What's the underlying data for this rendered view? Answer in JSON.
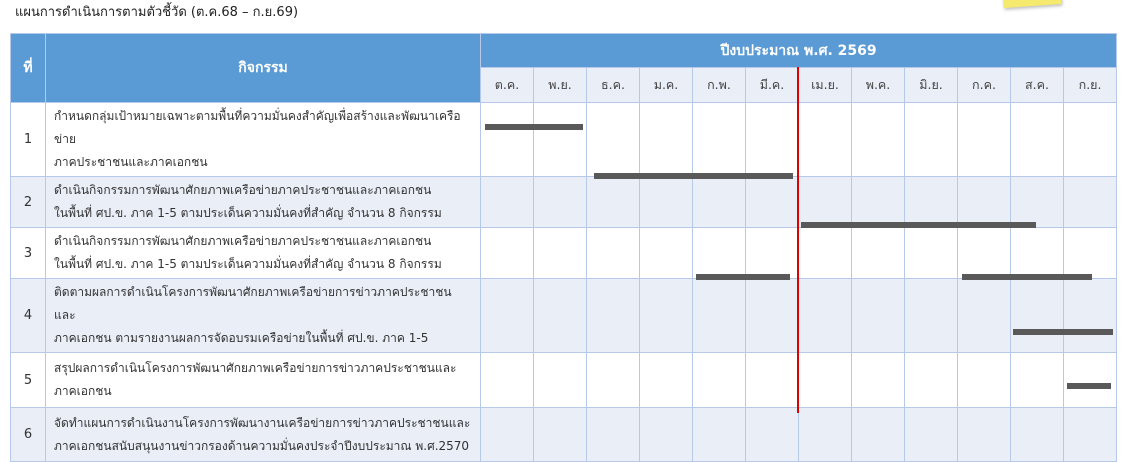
{
  "title": "แผนการดำเนินการตามตัวชี้วัด  (ต.ค.68 – ก.ย.69)",
  "header": {
    "no": "ที่",
    "activity": "กิจกรรม",
    "year": "ปีงบประมาณ พ.ศ. 2569"
  },
  "chart_data": {
    "type": "gantt",
    "categories": [
      "ต.ค.",
      "พ.ย.",
      "ธ.ค.",
      "ม.ค.",
      "ก.พ.",
      "มี.ค.",
      "เม.ย.",
      "พ.ค.",
      "มิ.ย.",
      "ก.ค.",
      "ส.ค.",
      "ก.ย."
    ],
    "current_marker_month_index": 6,
    "current_marker_color": "#e00000",
    "bar_color": "#595959",
    "rows": [
      {
        "no": "1",
        "lines": [
          "กำหนดกลุ่มเป้าหมายเฉพาะตามพื้นที่ความมั่นคงสำคัญเพื่อสร้างและพัฒนาเครือข่าย",
          "ภาคประชาชนและภาคเอกชน"
        ],
        "bars": [
          [
            0.1,
            1.95
          ]
        ]
      },
      {
        "no": "2",
        "lines": [
          "ดำเนินกิจกรรมการพัฒนาศักยภาพเครือข่ายภาคประชาชนและภาคเอกชน",
          "ในพื้นที่ ศป.ข. ภาค 1-5 ตามประเด็นความมั่นคงที่สำคัญ จำนวน 8 กิจกรรม"
        ],
        "bars": [
          [
            2.15,
            5.9
          ]
        ]
      },
      {
        "no": "3",
        "lines": [
          "ดำเนินกิจกรรมการพัฒนาศักยภาพเครือข่ายภาคประชาชนและภาคเอกชน",
          "ในพื้นที่ ศป.ข. ภาค 1-5 ตามประเด็นความมั่นคงที่สำคัญ จำนวน 8 กิจกรรม"
        ],
        "bars": [
          [
            6.05,
            10.5
          ]
        ]
      },
      {
        "no": "4",
        "lines": [
          "ติดตามผลการดำเนินโครงการพัฒนาศักยภาพเครือข่ายการข่าวภาคประชาชนและ",
          "ภาคเอกชน ตามรายงานผลการจัดอบรมเครือข่ายในพื้นที่ ศป.ข. ภาค 1-5"
        ],
        "bars": [
          [
            4.08,
            5.85
          ],
          [
            9.1,
            11.55
          ]
        ]
      },
      {
        "no": "5",
        "lines": [
          "สรุปผลการดำเนินโครงการพัฒนาศักยภาพเครือข่ายการข่าวภาคประชาชนและ",
          "ภาคเอกชน"
        ],
        "bars": [
          [
            10.05,
            11.95
          ]
        ]
      },
      {
        "no": "6",
        "lines": [
          "จัดทำแผนการดำเนินงานโครงการพัฒนางานเครือข่ายการข่าวภาคประชาชนและ",
          "ภาคเอกชนสนับสนุนงานข่าวกรองด้านความมั่นคงประจำปีงบประมาณ พ.ศ.2570"
        ],
        "bars": [
          [
            11.08,
            11.9
          ]
        ]
      }
    ]
  }
}
